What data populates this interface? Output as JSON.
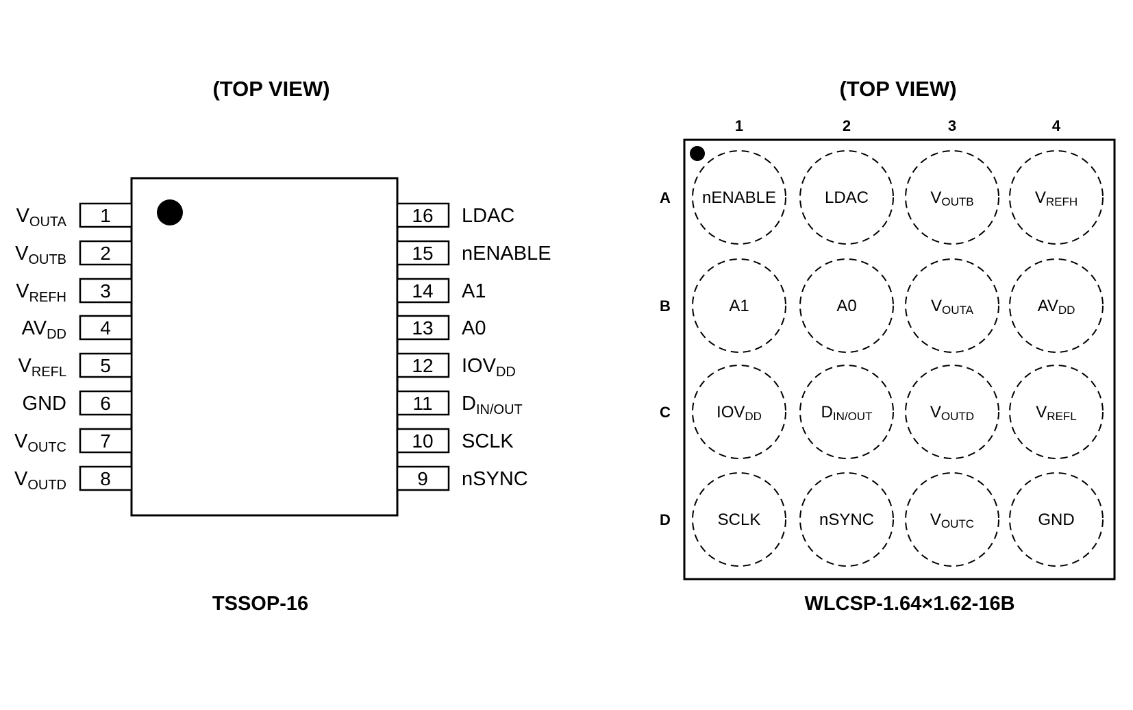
{
  "tssop": {
    "title": "(TOP VIEW)",
    "caption": "TSSOP-16",
    "left_pins": [
      {
        "num": "1",
        "main": "V",
        "sub": "OUTA"
      },
      {
        "num": "2",
        "main": "V",
        "sub": "OUTB"
      },
      {
        "num": "3",
        "main": "V",
        "sub": "REFH"
      },
      {
        "num": "4",
        "main": "AV",
        "sub": "DD"
      },
      {
        "num": "5",
        "main": "V",
        "sub": "REFL"
      },
      {
        "num": "6",
        "main": "GND",
        "sub": ""
      },
      {
        "num": "7",
        "main": "V",
        "sub": "OUTC"
      },
      {
        "num": "8",
        "main": "V",
        "sub": "OUTD"
      }
    ],
    "right_pins": [
      {
        "num": "16",
        "main": "LDAC",
        "sub": ""
      },
      {
        "num": "15",
        "main": "nENABLE",
        "sub": ""
      },
      {
        "num": "14",
        "main": "A1",
        "sub": ""
      },
      {
        "num": "13",
        "main": "A0",
        "sub": ""
      },
      {
        "num": "12",
        "main": "IOV",
        "sub": "DD"
      },
      {
        "num": "11",
        "main": "D",
        "sub": "IN/OUT"
      },
      {
        "num": "10",
        "main": "SCLK",
        "sub": ""
      },
      {
        "num": "9",
        "main": "nSYNC",
        "sub": ""
      }
    ]
  },
  "wlcsp": {
    "title": "(TOP VIEW)",
    "caption": "WLCSP-1.64×1.62-16B",
    "columns": [
      "1",
      "2",
      "3",
      "4"
    ],
    "rows": [
      {
        "label": "A",
        "balls": [
          {
            "main": "nENABLE",
            "sub": ""
          },
          {
            "main": "LDAC",
            "sub": ""
          },
          {
            "main": "V",
            "sub": "OUTB"
          },
          {
            "main": "V",
            "sub": "REFH"
          }
        ]
      },
      {
        "label": "B",
        "balls": [
          {
            "main": "A1",
            "sub": ""
          },
          {
            "main": "A0",
            "sub": ""
          },
          {
            "main": "V",
            "sub": "OUTA"
          },
          {
            "main": "AV",
            "sub": "DD"
          }
        ]
      },
      {
        "label": "C",
        "balls": [
          {
            "main": "IOV",
            "sub": "DD"
          },
          {
            "main": "D",
            "sub": "IN/OUT"
          },
          {
            "main": "V",
            "sub": "OUTD"
          },
          {
            "main": "V",
            "sub": "REFL"
          }
        ]
      },
      {
        "label": "D",
        "balls": [
          {
            "main": "SCLK",
            "sub": ""
          },
          {
            "main": "nSYNC",
            "sub": ""
          },
          {
            "main": "V",
            "sub": "OUTC"
          },
          {
            "main": "GND",
            "sub": ""
          }
        ]
      }
    ]
  }
}
